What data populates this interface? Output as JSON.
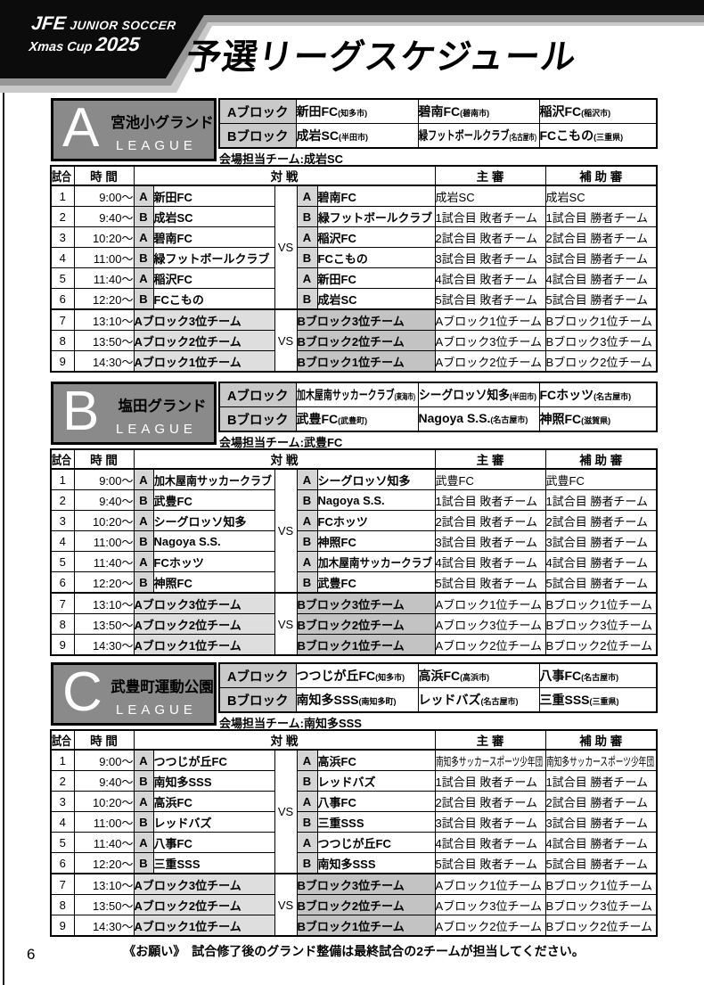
{
  "colors": {
    "banner_black": "#0c0c0c",
    "banner_stripe_gray": "#969696",
    "banner_shadow_gray": "#c9c9c9",
    "badge_gray": "#8a8a8a",
    "block_label_gray": "#c9c9c9",
    "letter_cell_gray": "#d5d5d5",
    "playoff_left_gray": "#dedede",
    "playoff_right_gray": "#c3c3c3"
  },
  "header": {
    "logo_jfe": "JFE",
    "logo_series": "JUNIOR SOCCER",
    "logo_event": "Xmas Cup",
    "logo_year": "2025",
    "title": "予選リーグスケジュール"
  },
  "labels": {
    "match_no": "試合",
    "time": "時 間",
    "versus": "対 戦",
    "referee": "主 審",
    "assistant_referee": "補 助 審",
    "vs": "VS",
    "block_a": "Aブロック",
    "block_b": "Bブロック",
    "league_word": "LEAGUE"
  },
  "leagues": [
    {
      "letter": "A",
      "venue": "宮池小グランド",
      "host_line": "会場担当チーム:成岩SC",
      "block_a": [
        {
          "name": "新田FC",
          "city": "(知多市)"
        },
        {
          "name": "碧南FC",
          "city": "(碧南市)"
        },
        {
          "name": "稲沢FC",
          "city": "(稲沢市)"
        }
      ],
      "block_b": [
        {
          "name": "成岩SC",
          "city": "(半田市)"
        },
        {
          "name": "緑フットボールクラブ",
          "city": "(名古屋市)"
        },
        {
          "name": "FCこもの",
          "city": "(三重県)"
        }
      ],
      "matches": [
        {
          "no": "1",
          "time": "9:00～",
          "home_block": "A",
          "home": "新田FC",
          "away_block": "A",
          "away": "碧南FC",
          "referee": "成岩SC",
          "assistant": "成岩SC"
        },
        {
          "no": "2",
          "time": "9:40～",
          "home_block": "B",
          "home": "成岩SC",
          "away_block": "B",
          "away": "緑フットボールクラブ",
          "referee": "1試合目 敗者チーム",
          "assistant": "1試合目 勝者チーム"
        },
        {
          "no": "3",
          "time": "10:20～",
          "home_block": "A",
          "home": "碧南FC",
          "away_block": "A",
          "away": "稲沢FC",
          "referee": "2試合目 敗者チーム",
          "assistant": "2試合目 勝者チーム"
        },
        {
          "no": "4",
          "time": "11:00～",
          "home_block": "B",
          "home": "緑フットボールクラブ",
          "away_block": "B",
          "away": "FCこもの",
          "referee": "3試合目 敗者チーム",
          "assistant": "3試合目 勝者チーム"
        },
        {
          "no": "5",
          "time": "11:40～",
          "home_block": "A",
          "home": "稲沢FC",
          "away_block": "A",
          "away": "新田FC",
          "referee": "4試合目 敗者チーム",
          "assistant": "4試合目 勝者チーム"
        },
        {
          "no": "6",
          "time": "12:20～",
          "home_block": "B",
          "home": "FCこもの",
          "away_block": "B",
          "away": "成岩SC",
          "referee": "5試合目 敗者チーム",
          "assistant": "5試合目 勝者チーム"
        }
      ],
      "playoffs": [
        {
          "no": "7",
          "time": "13:10～",
          "home": "Aブロック3位チーム",
          "away": "Bブロック3位チーム",
          "referee": "Aブロック1位チーム",
          "assistant": "Bブロック1位チーム"
        },
        {
          "no": "8",
          "time": "13:50～",
          "home": "Aブロック2位チーム",
          "away": "Bブロック2位チーム",
          "referee": "Aブロック3位チーム",
          "assistant": "Bブロック3位チーム"
        },
        {
          "no": "9",
          "time": "14:30～",
          "home": "Aブロック1位チーム",
          "away": "Bブロック1位チーム",
          "referee": "Aブロック2位チーム",
          "assistant": "Bブロック2位チーム"
        }
      ]
    },
    {
      "letter": "B",
      "venue": "塩田グランド",
      "host_line": "会場担当チーム:武豊FC",
      "block_a": [
        {
          "name": "加木屋南サッカークラブ",
          "city": "(東海市)"
        },
        {
          "name": "シーグロッソ知多",
          "city": "(半田市)"
        },
        {
          "name": "FCホッツ",
          "city": "(名古屋市)"
        }
      ],
      "block_b": [
        {
          "name": "武豊FC",
          "city": "(武豊町)"
        },
        {
          "name": "Nagoya S.S.",
          "city": "(名古屋市)"
        },
        {
          "name": "神照FC",
          "city": "(滋賀県)"
        }
      ],
      "matches": [
        {
          "no": "1",
          "time": "9:00～",
          "home_block": "A",
          "home": "加木屋南サッカークラブ",
          "away_block": "A",
          "away": "シーグロッソ知多",
          "referee": "武豊FC",
          "assistant": "武豊FC"
        },
        {
          "no": "2",
          "time": "9:40～",
          "home_block": "B",
          "home": "武豊FC",
          "away_block": "B",
          "away": "Nagoya S.S.",
          "referee": "1試合目 敗者チーム",
          "assistant": "1試合目 勝者チーム"
        },
        {
          "no": "3",
          "time": "10:20～",
          "home_block": "A",
          "home": "シーグロッソ知多",
          "away_block": "A",
          "away": "FCホッツ",
          "referee": "2試合目 敗者チーム",
          "assistant": "2試合目 勝者チーム"
        },
        {
          "no": "4",
          "time": "11:00～",
          "home_block": "B",
          "home": "Nagoya S.S.",
          "away_block": "B",
          "away": "神照FC",
          "referee": "3試合目 敗者チーム",
          "assistant": "3試合目 勝者チーム"
        },
        {
          "no": "5",
          "time": "11:40～",
          "home_block": "A",
          "home": "FCホッツ",
          "away_block": "A",
          "away": "加木屋南サッカークラブ",
          "referee": "4試合目 敗者チーム",
          "assistant": "4試合目 勝者チーム"
        },
        {
          "no": "6",
          "time": "12:20～",
          "home_block": "B",
          "home": "神照FC",
          "away_block": "B",
          "away": "武豊FC",
          "referee": "5試合目 敗者チーム",
          "assistant": "5試合目 勝者チーム"
        }
      ],
      "playoffs": [
        {
          "no": "7",
          "time": "13:10～",
          "home": "Aブロック3位チーム",
          "away": "Bブロック3位チーム",
          "referee": "Aブロック1位チーム",
          "assistant": "Bブロック1位チーム"
        },
        {
          "no": "8",
          "time": "13:50～",
          "home": "Aブロック2位チーム",
          "away": "Bブロック2位チーム",
          "referee": "Aブロック3位チーム",
          "assistant": "Bブロック3位チーム"
        },
        {
          "no": "9",
          "time": "14:30～",
          "home": "Aブロック1位チーム",
          "away": "Bブロック1位チーム",
          "referee": "Aブロック2位チーム",
          "assistant": "Bブロック2位チーム"
        }
      ]
    },
    {
      "letter": "C",
      "venue": "武豊町運動公園",
      "host_line": "会場担当チーム:南知多SSS",
      "block_a": [
        {
          "name": "つつじが丘FC",
          "city": "(知多市)"
        },
        {
          "name": "高浜FC",
          "city": "(高浜市)"
        },
        {
          "name": "八事FC",
          "city": "(名古屋市)"
        }
      ],
      "block_b": [
        {
          "name": "南知多SSS",
          "city": "(南知多町)"
        },
        {
          "name": "レッドバズ",
          "city": "(名古屋市)"
        },
        {
          "name": "三重SSS",
          "city": "(三重県)"
        }
      ],
      "matches": [
        {
          "no": "1",
          "time": "9:00～",
          "home_block": "A",
          "home": "つつじが丘FC",
          "away_block": "A",
          "away": "高浜FC",
          "referee": "南知多サッカースポーツ少年団",
          "assistant": "南知多サッカースポーツ少年団"
        },
        {
          "no": "2",
          "time": "9:40～",
          "home_block": "B",
          "home": "南知多SSS",
          "away_block": "B",
          "away": "レッドバズ",
          "referee": "1試合目 敗者チーム",
          "assistant": "1試合目 勝者チーム"
        },
        {
          "no": "3",
          "time": "10:20～",
          "home_block": "A",
          "home": "高浜FC",
          "away_block": "A",
          "away": "八事FC",
          "referee": "2試合目 敗者チーム",
          "assistant": "2試合目 勝者チーム"
        },
        {
          "no": "4",
          "time": "11:00～",
          "home_block": "B",
          "home": "レッドバズ",
          "away_block": "B",
          "away": "三重SSS",
          "referee": "3試合目 敗者チーム",
          "assistant": "3試合目 勝者チーム"
        },
        {
          "no": "5",
          "time": "11:40～",
          "home_block": "A",
          "home": "八事FC",
          "away_block": "A",
          "away": "つつじが丘FC",
          "referee": "4試合目 敗者チーム",
          "assistant": "4試合目 勝者チーム"
        },
        {
          "no": "6",
          "time": "12:20～",
          "home_block": "B",
          "home": "三重SSS",
          "away_block": "B",
          "away": "南知多SSS",
          "referee": "5試合目 敗者チーム",
          "assistant": "5試合目 勝者チーム"
        }
      ],
      "playoffs": [
        {
          "no": "7",
          "time": "13:10～",
          "home": "Aブロック3位チーム",
          "away": "Bブロック3位チーム",
          "referee": "Aブロック1位チーム",
          "assistant": "Bブロック1位チーム"
        },
        {
          "no": "8",
          "time": "13:50～",
          "home": "Aブロック2位チーム",
          "away": "Bブロック2位チーム",
          "referee": "Aブロック3位チーム",
          "assistant": "Bブロック3位チーム"
        },
        {
          "no": "9",
          "time": "14:30～",
          "home": "Aブロック1位チーム",
          "away": "Bブロック1位チーム",
          "referee": "Aブロック2位チーム",
          "assistant": "Bブロック2位チーム"
        }
      ]
    }
  ],
  "footer": {
    "note": "《お願い》　試合修了後のグランド整備は最終試合の2チームが担当してください。",
    "page_number": "6"
  }
}
